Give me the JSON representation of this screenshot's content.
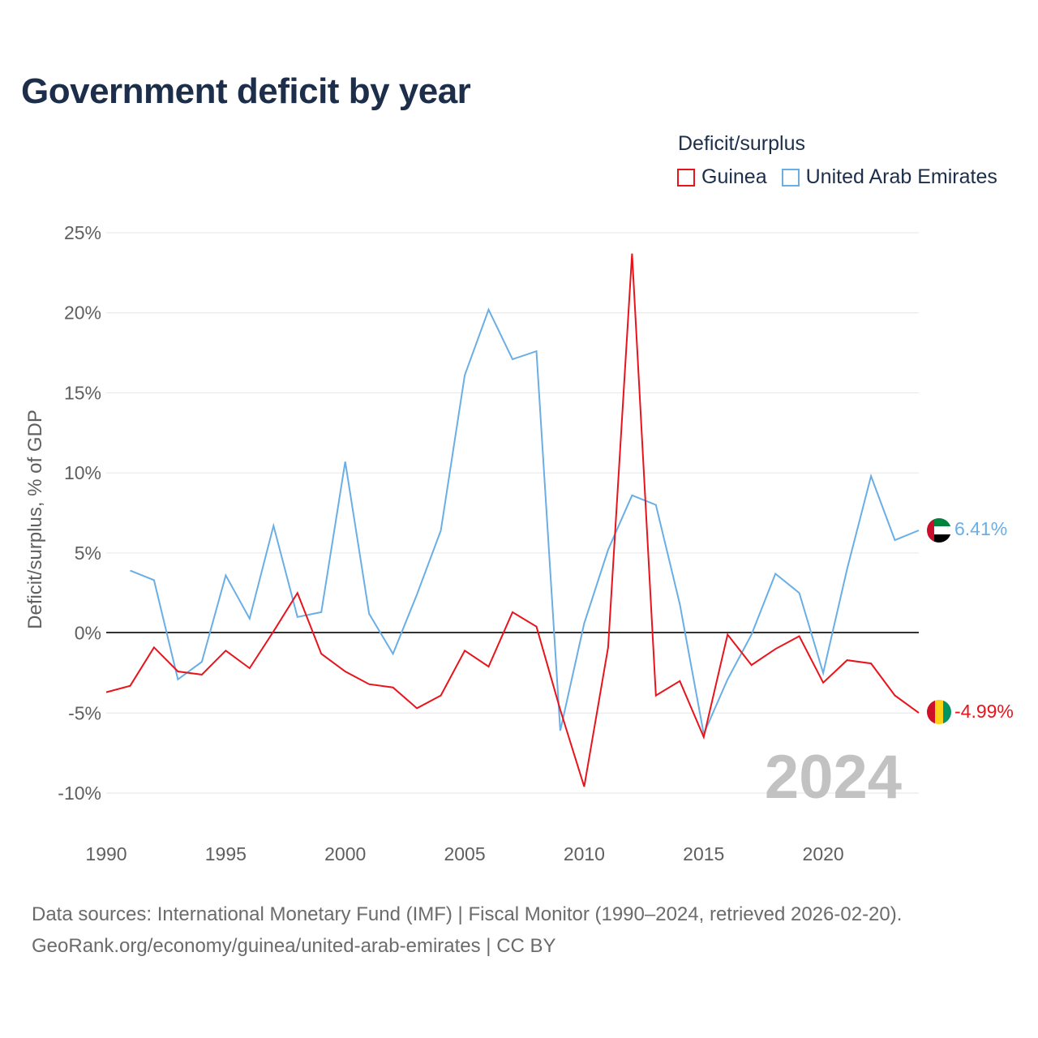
{
  "title": "Government deficit by year",
  "legend": {
    "title": "Deficit/surplus",
    "items": [
      {
        "name": "Guinea",
        "color": "#e8141c"
      },
      {
        "name": "United Arab Emirates",
        "color": "#6aaee6"
      }
    ]
  },
  "sources": {
    "line1": "Data sources: International Monetary Fund (IMF) | Fiscal Monitor (1990–2024, retrieved 2026-02-20).",
    "line2": "GeoRank.org/economy/guinea/united-arab-emirates | CC BY"
  },
  "chart_data": {
    "type": "line",
    "title": "Government deficit by year",
    "xlabel": "",
    "ylabel": "Deficit/surplus, % of GDP",
    "xlim": [
      1990,
      2024
    ],
    "ylim": [
      -10,
      25
    ],
    "x_ticks": [
      1990,
      1995,
      2000,
      2005,
      2010,
      2015,
      2020
    ],
    "x_tick_labels": [
      "1990",
      "1995",
      "2000",
      "2005",
      "2010",
      "2015",
      "2020"
    ],
    "y_ticks": [
      25,
      20,
      15,
      10,
      5,
      0,
      -5,
      -10
    ],
    "y_tick_labels": [
      "25%",
      "20%",
      "15%",
      "10%",
      "5%",
      "0%",
      "-5%",
      "-10%"
    ],
    "year_label": "2024",
    "grid": true,
    "legend_position": "top-right",
    "series": [
      {
        "name": "Guinea",
        "color": "#e8141c",
        "end_label": "-4.99%",
        "x": [
          1990,
          1991,
          1992,
          1993,
          1994,
          1995,
          1996,
          1997,
          1998,
          1999,
          2000,
          2001,
          2002,
          2003,
          2004,
          2005,
          2006,
          2007,
          2008,
          2009,
          2010,
          2011,
          2012,
          2013,
          2014,
          2015,
          2016,
          2017,
          2018,
          2019,
          2020,
          2021,
          2022,
          2023,
          2024
        ],
        "values": [
          -3.7,
          -3.3,
          -0.9,
          -2.4,
          -2.6,
          -1.1,
          -2.2,
          0.1,
          2.5,
          -1.3,
          -2.4,
          -3.2,
          -3.4,
          -4.7,
          -3.9,
          -1.1,
          -2.1,
          1.3,
          0.4,
          -4.8,
          -9.6,
          -0.9,
          23.7,
          -3.9,
          -3.0,
          -6.5,
          -0.1,
          -2.0,
          -1.0,
          -0.2,
          -3.1,
          -1.7,
          -1.9,
          -3.9,
          -4.99
        ]
      },
      {
        "name": "United Arab Emirates",
        "color": "#6aaee6",
        "end_label": "6.41%",
        "x": [
          1991,
          1992,
          1993,
          1994,
          1995,
          1996,
          1997,
          1998,
          1999,
          2000,
          2001,
          2002,
          2003,
          2004,
          2005,
          2006,
          2007,
          2008,
          2009,
          2010,
          2011,
          2012,
          2013,
          2014,
          2015,
          2016,
          2017,
          2018,
          2019,
          2020,
          2021,
          2022,
          2023,
          2024
        ],
        "values": [
          3.9,
          3.3,
          -2.9,
          -1.8,
          3.6,
          0.9,
          6.7,
          1.0,
          1.3,
          10.7,
          1.2,
          -1.3,
          2.4,
          6.4,
          16.1,
          20.2,
          17.1,
          17.6,
          -6.1,
          0.6,
          5.2,
          8.6,
          8.0,
          1.8,
          -6.3,
          -2.9,
          -0.1,
          3.7,
          2.5,
          -2.5,
          4.0,
          9.8,
          5.8,
          6.41
        ]
      }
    ]
  }
}
